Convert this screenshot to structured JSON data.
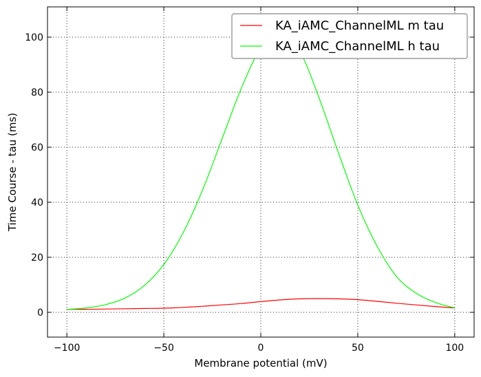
{
  "chart_data": {
    "type": "line",
    "xlabel": "Membrane potential (mV)",
    "ylabel": "Time Course - tau (ms)",
    "xlim": [
      -110,
      110
    ],
    "ylim": [
      -9,
      111
    ],
    "x_ticks": [
      -100,
      -50,
      0,
      50,
      100
    ],
    "y_ticks": [
      0,
      20,
      40,
      60,
      80,
      100
    ],
    "x_tick_labels": [
      "−100",
      "−50",
      "0",
      "50",
      "100"
    ],
    "y_tick_labels": [
      "0",
      "20",
      "40",
      "60",
      "80",
      "100"
    ],
    "grid": true,
    "legend_position": "top-right",
    "x": [
      -100,
      -90,
      -80,
      -70,
      -60,
      -50,
      -40,
      -30,
      -20,
      -10,
      0,
      10,
      20,
      30,
      40,
      50,
      60,
      70,
      80,
      90,
      100
    ],
    "series": [
      {
        "name": "KA_iAMC_ChannelML m tau",
        "color": "#ff0000",
        "values": [
          1.1,
          1.1,
          1.2,
          1.3,
          1.4,
          1.5,
          1.8,
          2.2,
          2.7,
          3.2,
          3.9,
          4.5,
          4.9,
          5.0,
          4.9,
          4.6,
          4.0,
          3.3,
          2.7,
          2.1,
          1.6
        ]
      },
      {
        "name": "KA_iAMC_ChannelML h tau",
        "color": "#00ff00",
        "values": [
          1.1,
          1.6,
          2.8,
          5.2,
          9.8,
          17.4,
          29.0,
          44.5,
          63.0,
          81.5,
          96.0,
          101.2,
          95.0,
          78.0,
          58.0,
          39.0,
          24.0,
          13.0,
          7.0,
          3.6,
          1.6
        ]
      }
    ]
  }
}
